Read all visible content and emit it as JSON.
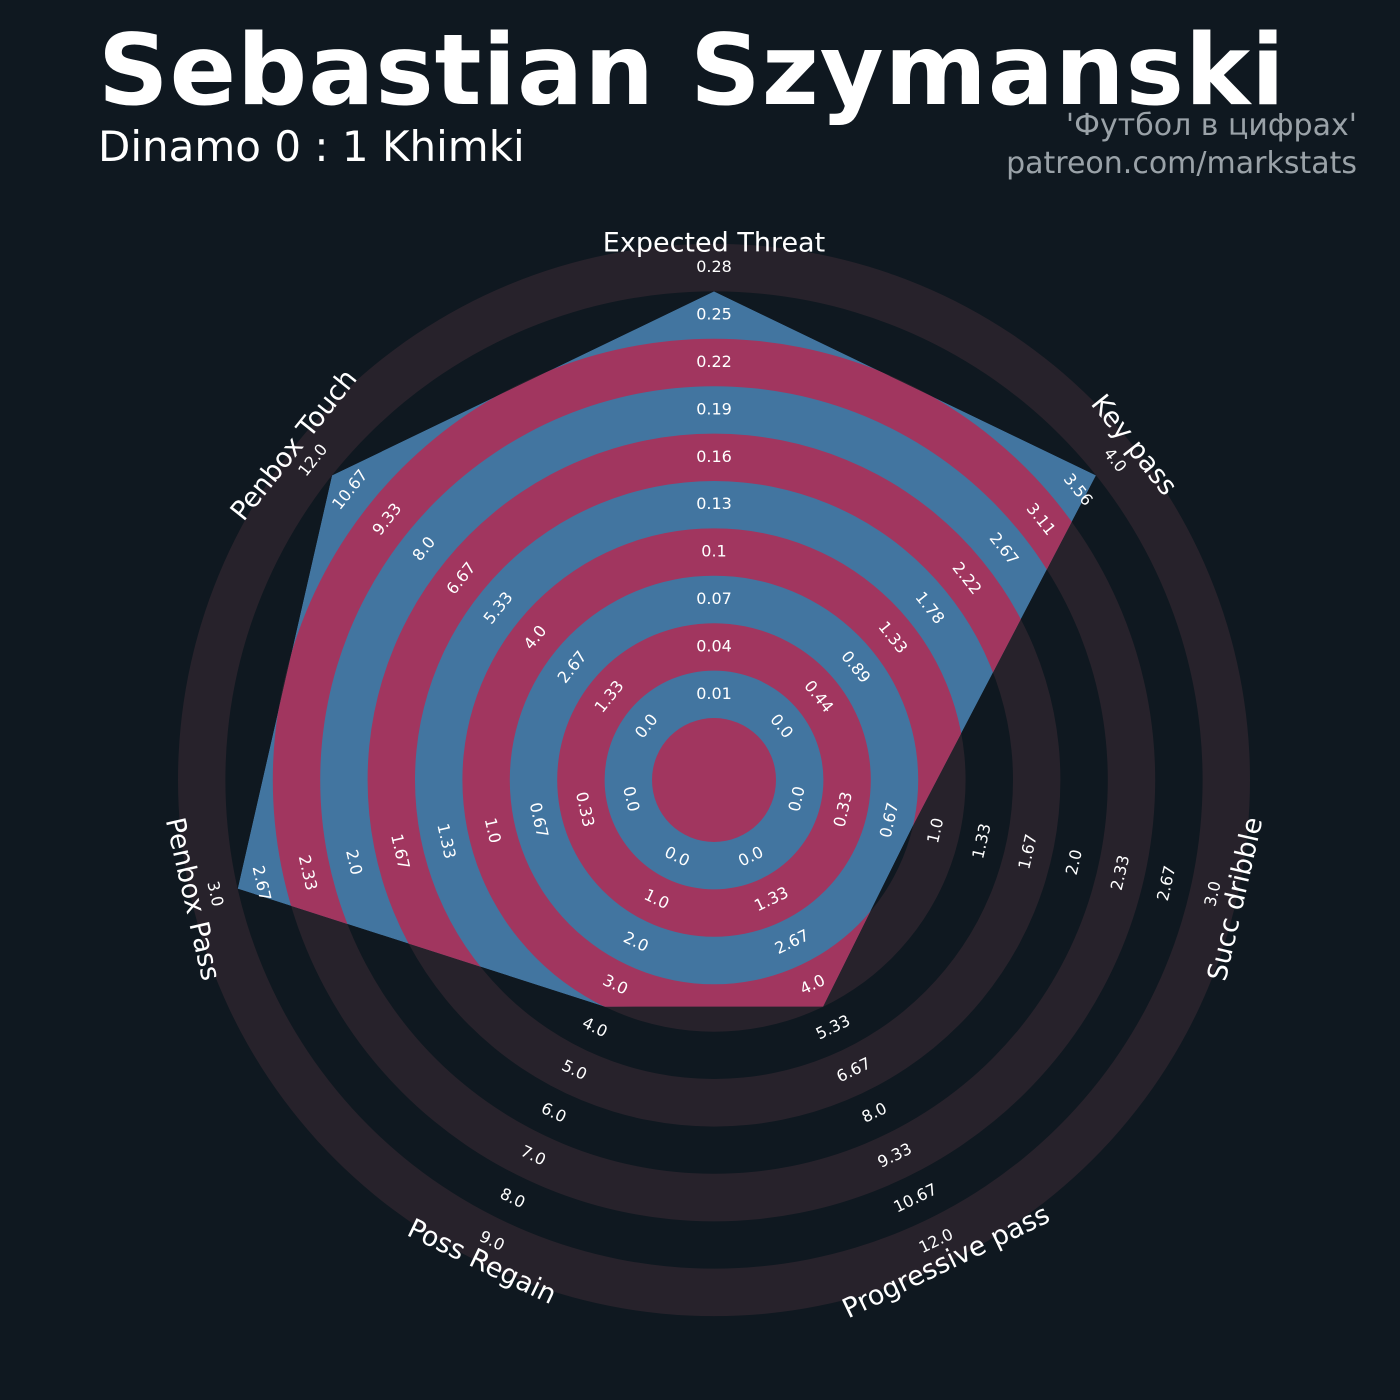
{
  "header": {
    "title": "Sebastian Szymanski",
    "subtitle": "Dinamo 0 : 1 Khimki",
    "credit_source": "'Футбол в цифрах'",
    "credit_link": "patreon.com/markstats"
  },
  "colors": {
    "background": "#0f1820",
    "ring_band": "#27222b",
    "player_fill": "#4275a0",
    "player_overlap": "#a1365f",
    "text": "#ffffff",
    "credit": "#9aa2a8"
  },
  "chart_data": {
    "type": "radar",
    "params": [
      {
        "name": "Expected Threat",
        "ticks": [
          "0.01",
          "0.04",
          "0.07",
          "0.1",
          "0.13",
          "0.16",
          "0.19",
          "0.22",
          "0.25",
          "0.28"
        ],
        "min": 0.01,
        "max": 0.28,
        "value": 0.28
      },
      {
        "name": "Key pass",
        "ticks": [
          "0.0",
          "0.44",
          "0.89",
          "1.33",
          "1.78",
          "2.22",
          "2.67",
          "3.11",
          "3.56",
          "4.0"
        ],
        "min": 0.0,
        "max": 4.0,
        "value": 4.0
      },
      {
        "name": "Succ dribble",
        "ticks": [
          "0.0",
          "0.33",
          "0.67",
          "1.0",
          "1.33",
          "1.67",
          "2.0",
          "2.33",
          "2.67",
          "3.0"
        ],
        "min": 0.0,
        "max": 3.0,
        "value": 1.0
      },
      {
        "name": "Progressive pass",
        "ticks": [
          "0.0",
          "1.33",
          "2.67",
          "4.0",
          "5.33",
          "6.67",
          "8.0",
          "9.33",
          "10.67",
          "12.0"
        ],
        "min": 0.0,
        "max": 12.0,
        "value": 5.33
      },
      {
        "name": "Poss Regain",
        "ticks": [
          "0.0",
          "1.0",
          "2.0",
          "3.0",
          "4.0",
          "5.0",
          "6.0",
          "7.0",
          "8.0",
          "9.0"
        ],
        "min": 0.0,
        "max": 9.0,
        "value": 4.0
      },
      {
        "name": "Penbox Pass",
        "ticks": [
          "0.0",
          "0.33",
          "0.67",
          "1.0",
          "1.33",
          "1.67",
          "2.0",
          "2.33",
          "2.67",
          "3.0"
        ],
        "min": 0.0,
        "max": 3.0,
        "value": 3.0
      },
      {
        "name": "Penbox Touch",
        "ticks": [
          "0.0",
          "1.33",
          "2.67",
          "4.0",
          "5.33",
          "6.67",
          "8.0",
          "9.33",
          "10.67",
          "12.0"
        ],
        "min": 0.0,
        "max": 12.0,
        "value": 12.0
      }
    ]
  }
}
